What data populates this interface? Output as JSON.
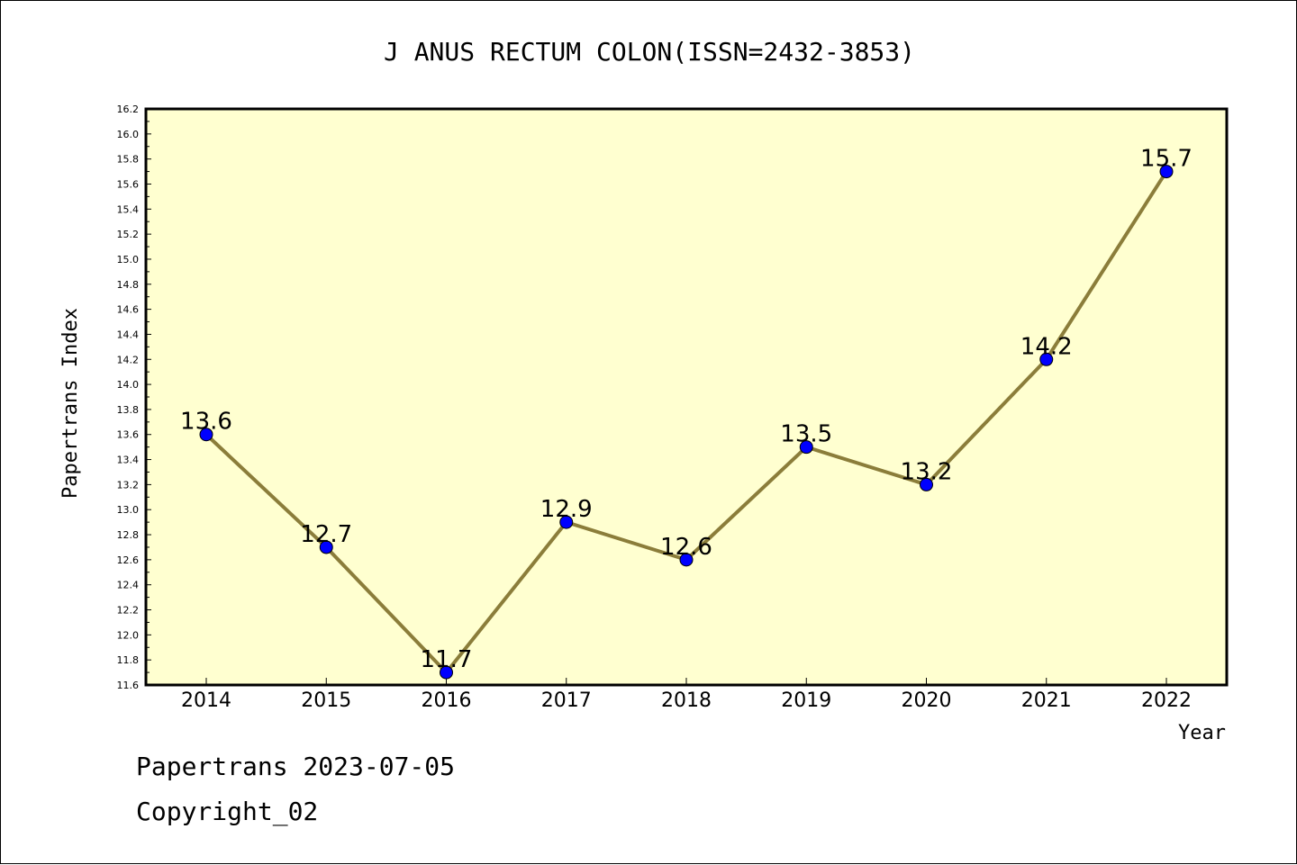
{
  "chart_data": {
    "type": "line",
    "title": "J ANUS RECTUM COLON(ISSN=2432-3853)",
    "xlabel": "Year",
    "ylabel": "Papertrans Index",
    "categories": [
      "2014",
      "2015",
      "2016",
      "2017",
      "2018",
      "2019",
      "2020",
      "2021",
      "2022"
    ],
    "series": [
      {
        "values": [
          13.6,
          12.7,
          11.7,
          12.9,
          12.6,
          13.5,
          13.2,
          14.2,
          15.7
        ],
        "data_labels": [
          "13.6",
          "12.7",
          "11.7",
          "12.9",
          "12.6",
          "13.5",
          "13.2",
          "14.2",
          "15.7"
        ]
      }
    ],
    "ylim": [
      11.6,
      16.2
    ],
    "yticks": [
      "11.6",
      "11.8",
      "12.0",
      "12.2",
      "12.4",
      "12.6",
      "12.8",
      "13.0",
      "13.2",
      "13.4",
      "13.6",
      "13.8",
      "14.0",
      "14.2",
      "14.4",
      "14.6",
      "14.8",
      "15.0",
      "15.2",
      "15.4",
      "15.6",
      "15.8",
      "16.0",
      "16.2"
    ],
    "grid": false,
    "colors": {
      "plot_background": "#ffffd0",
      "line": "#8b7d3a",
      "marker": "#0000ff"
    }
  },
  "footer": {
    "date_line": "Papertrans 2023-07-05",
    "copyright": "Copyright_02"
  }
}
